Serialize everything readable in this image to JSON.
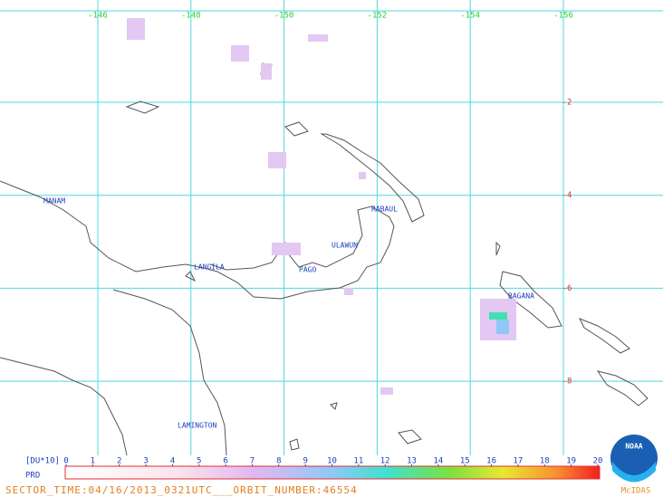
{
  "map": {
    "lon_labels": [
      -146,
      -148,
      -150,
      -152,
      -154,
      -156
    ],
    "lat_labels": [
      -2,
      -4,
      -6,
      -8
    ],
    "places": [
      "MANAM",
      "RABAUL",
      "ULAWUN",
      "LANGILA",
      "PAGO",
      "BAGANA",
      "LAMINGTON"
    ],
    "legend": {
      "unit": "[DU*10]",
      "label": "PRD",
      "ticks": [
        0,
        1,
        2,
        3,
        4,
        5,
        6,
        7,
        8,
        9,
        10,
        11,
        12,
        13,
        14,
        15,
        16,
        17,
        18,
        19,
        20
      ]
    },
    "footer": "SECTOR_TIME:04/16/2013_0321UTC___ORBIT_NUMBER:46554",
    "logo": "NOAA",
    "logo_sub": "McIDAS"
  }
}
